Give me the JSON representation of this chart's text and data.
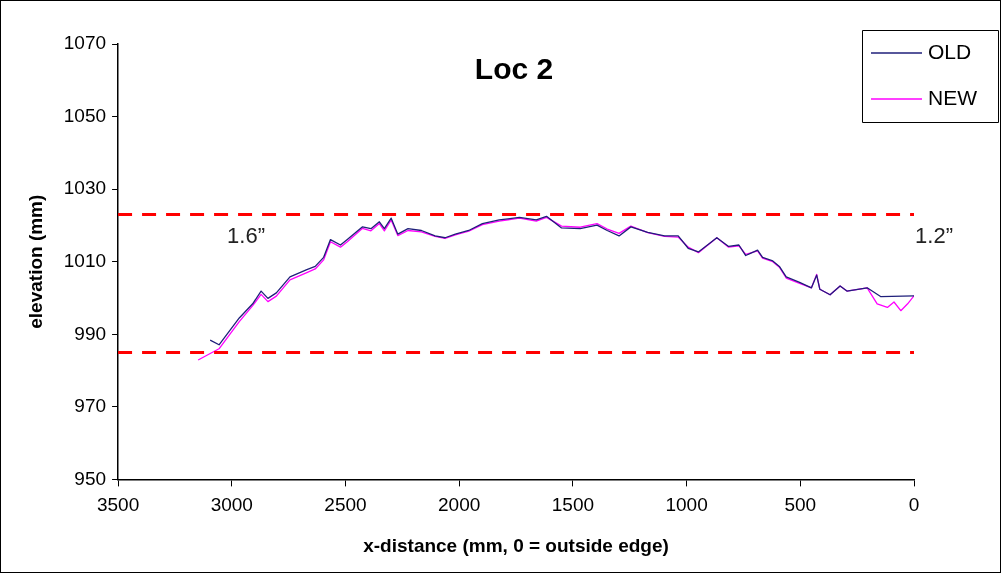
{
  "chart_data": {
    "type": "line",
    "title": "Loc 2",
    "xlabel": "x-distance (mm, 0 = outside edge)",
    "ylabel": "elevation (mm)",
    "xlim": [
      3500,
      0
    ],
    "xticks": [
      3500,
      3000,
      2500,
      2000,
      1500,
      1000,
      500,
      0
    ],
    "ylim": [
      950,
      1070
    ],
    "yticks": [
      950,
      970,
      990,
      1010,
      1030,
      1050,
      1070
    ],
    "grid": false,
    "legend": "top right",
    "marker": "none",
    "line_style": "solid",
    "annotations": [
      "1.6”",
      "1.2”"
    ],
    "ref_lines": [
      {
        "axis": "y",
        "value": 1023,
        "color": "#ff0000",
        "line_style": "dashed"
      },
      {
        "axis": "y",
        "value": 985,
        "color": "#ff0000",
        "line_style": "dashed"
      }
    ],
    "series": [
      {
        "name": "OLD",
        "color": "#1f1f7a",
        "x": [
          3095,
          3056,
          2967,
          2908,
          2871,
          2841,
          2804,
          2744,
          2670,
          2633,
          2596,
          2566,
          2522,
          2492,
          2425,
          2388,
          2351,
          2329,
          2299,
          2270,
          2225,
          2166,
          2106,
          2062,
          2017,
          1958,
          1898,
          1824,
          1735,
          1661,
          1616,
          1550,
          1468,
          1394,
          1349,
          1297,
          1245,
          1171,
          1097,
          1037,
          993,
          948,
          867,
          815,
          770,
          740,
          688,
          666,
          621,
          592,
          562,
          503,
          451,
          428,
          414,
          369,
          325,
          295,
          206,
          147,
          0
        ],
        "values": [
          988.4,
          987.1,
          994.5,
          998.4,
          1001.9,
          999.9,
          1001.4,
          1005.8,
          1007.8,
          1008.7,
          1011.2,
          1016.1,
          1014.6,
          1016.1,
          1019.6,
          1019.1,
          1021.0,
          1019.1,
          1022.0,
          1017.6,
          1019.1,
          1018.6,
          1017.1,
          1016.6,
          1017.6,
          1018.6,
          1020.5,
          1021.5,
          1022.2,
          1021.5,
          1022.5,
          1019.3,
          1019.1,
          1020.1,
          1018.6,
          1017.1,
          1019.6,
          1018.1,
          1017.1,
          1017.1,
          1013.7,
          1012.7,
          1016.6,
          1014.2,
          1014.6,
          1011.7,
          1013.2,
          1011.2,
          1010.2,
          1008.7,
          1005.8,
          1004.3,
          1002.8,
          1006.3,
          1002.4,
          1000.9,
          1003.3,
          1001.9,
          1002.8,
          1000.4,
          1000.6
        ]
      },
      {
        "name": "NEW",
        "color": "#ff00ff",
        "x": [
          3148,
          3056,
          2967,
          2908,
          2871,
          2841,
          2804,
          2744,
          2670,
          2633,
          2596,
          2566,
          2522,
          2492,
          2425,
          2388,
          2351,
          2329,
          2299,
          2270,
          2225,
          2166,
          2106,
          2062,
          2017,
          1958,
          1898,
          1824,
          1735,
          1661,
          1616,
          1550,
          1468,
          1394,
          1349,
          1297,
          1245,
          1171,
          1097,
          1037,
          993,
          948,
          867,
          815,
          770,
          740,
          688,
          666,
          621,
          592,
          562,
          503,
          451,
          428,
          414,
          369,
          325,
          295,
          206,
          162,
          117,
          88,
          58,
          28,
          0
        ],
        "values": [
          982.9,
          986.0,
          993.5,
          997.9,
          1001.0,
          999.0,
          1000.5,
          1005.0,
          1007.0,
          1008.0,
          1010.5,
          1015.5,
          1014.0,
          1015.5,
          1019.2,
          1018.5,
          1020.5,
          1018.5,
          1021.5,
          1017.2,
          1018.6,
          1018.2,
          1017.0,
          1016.4,
          1017.4,
          1018.4,
          1020.2,
          1021.2,
          1022.0,
          1021.2,
          1022.2,
          1019.8,
          1019.5,
          1020.5,
          1019.0,
          1017.8,
          1019.8,
          1018.0,
          1017.0,
          1016.8,
          1014.0,
          1012.5,
          1016.6,
          1014.0,
          1014.4,
          1012.0,
          1013.0,
          1011.0,
          1010.0,
          1008.5,
          1005.5,
          1004.0,
          1002.8,
          1006.5,
          1002.4,
          1000.9,
          1003.3,
          1001.9,
          1002.8,
          998.4,
          997.4,
          998.9,
          996.5,
          998.4,
          1000.6
        ]
      }
    ]
  }
}
